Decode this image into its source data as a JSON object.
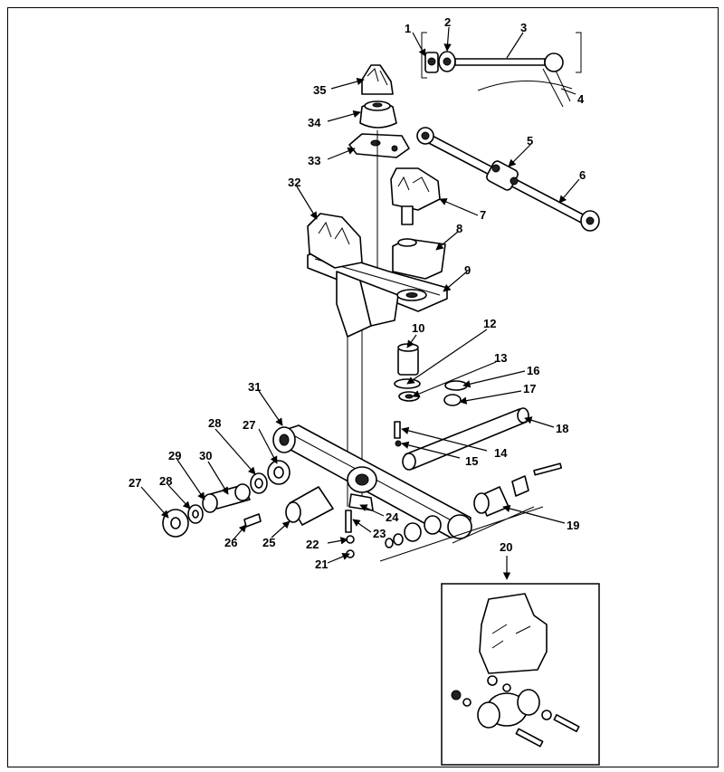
{
  "diagram": {
    "callouts": [
      {
        "id": "c1",
        "text": "1"
      },
      {
        "id": "c2",
        "text": "2"
      },
      {
        "id": "c3",
        "text": "3"
      },
      {
        "id": "c4",
        "text": "4"
      },
      {
        "id": "c5",
        "text": "5"
      },
      {
        "id": "c6",
        "text": "6"
      },
      {
        "id": "c7",
        "text": "7"
      },
      {
        "id": "c8",
        "text": "8"
      },
      {
        "id": "c9",
        "text": "9"
      },
      {
        "id": "c10",
        "text": "10"
      },
      {
        "id": "c12",
        "text": "12"
      },
      {
        "id": "c13",
        "text": "13"
      },
      {
        "id": "c14",
        "text": "14"
      },
      {
        "id": "c15",
        "text": "15"
      },
      {
        "id": "c16",
        "text": "16"
      },
      {
        "id": "c17",
        "text": "17"
      },
      {
        "id": "c18",
        "text": "18"
      },
      {
        "id": "c19",
        "text": "19"
      },
      {
        "id": "c20",
        "text": "20"
      },
      {
        "id": "c21",
        "text": "21"
      },
      {
        "id": "c22",
        "text": "22"
      },
      {
        "id": "c23",
        "text": "23"
      },
      {
        "id": "c24",
        "text": "24"
      },
      {
        "id": "c25",
        "text": "25"
      },
      {
        "id": "c26",
        "text": "26"
      },
      {
        "id": "c27a",
        "text": "27"
      },
      {
        "id": "c27b",
        "text": "27"
      },
      {
        "id": "c28a",
        "text": "28"
      },
      {
        "id": "c28b",
        "text": "28"
      },
      {
        "id": "c29",
        "text": "29"
      },
      {
        "id": "c30",
        "text": "30"
      },
      {
        "id": "c31",
        "text": "31"
      },
      {
        "id": "c32",
        "text": "32"
      },
      {
        "id": "c33",
        "text": "33"
      },
      {
        "id": "c34",
        "text": "34"
      },
      {
        "id": "c35",
        "text": "35"
      }
    ]
  }
}
